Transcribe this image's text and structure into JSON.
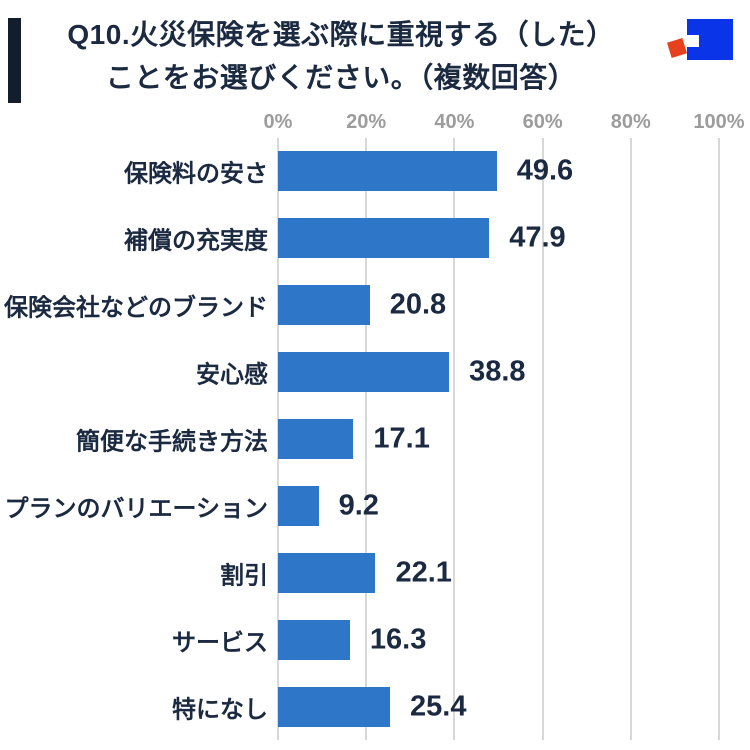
{
  "header": {
    "accent_color": "#131E2C",
    "title_line1": "Q10.火災保険を選ぶ際に重視する（した）",
    "title_line2": "ことをお選びください。（複数回答）",
    "title_color": "#1B2A41",
    "logo": {
      "name": "brand-logo",
      "blue": "#0A34E8",
      "red": "#E8401F"
    }
  },
  "chart_data": {
    "type": "bar",
    "orientation": "horizontal",
    "title": "Q10.火災保険を選ぶ際に重視する（した）ことをお選びください。（複数回答）",
    "categories": [
      "保険料の安さ",
      "補償の充実度",
      "保険会社などのブランド",
      "安心感",
      "簡便な手続き方法",
      "プランのバリエーション",
      "割引",
      "サービス",
      "特になし"
    ],
    "values": [
      49.6,
      47.9,
      20.8,
      38.8,
      17.1,
      9.2,
      22.1,
      16.3,
      25.4
    ],
    "x_ticks": [
      "0%",
      "20%",
      "40%",
      "60%",
      "80%",
      "100%"
    ],
    "xlabel": "",
    "ylabel": "",
    "xlim": [
      0,
      100
    ],
    "grid": true,
    "legend": false,
    "value_labels_shown": true,
    "bar_color": "#2E76C8",
    "category_label_color": "#1B2A41",
    "value_label_color": "#1B2A41",
    "grid_color": "#D8D8D8",
    "tick_label_color": "#9C9C9C"
  }
}
